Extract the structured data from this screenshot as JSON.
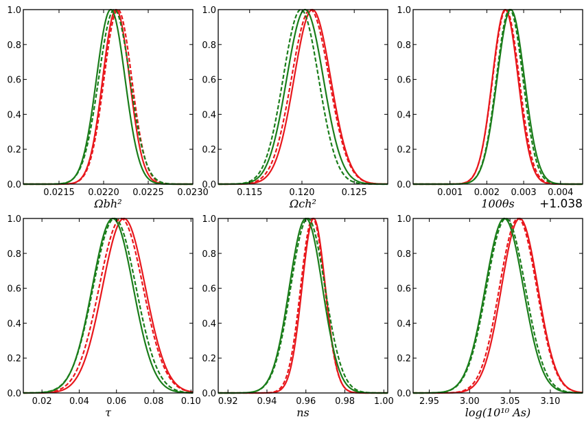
{
  "colors": {
    "red": "#e8161b",
    "green": "#1a7d1a"
  },
  "chart_data": [
    {
      "type": "line",
      "xlabel": "Ωbh²",
      "xlim": [
        0.0211,
        0.023
      ],
      "ylim": [
        0,
        1.0
      ],
      "xticks": [
        "0.0215",
        "0.0220",
        "0.0225",
        "0.0230"
      ],
      "xtick_values": [
        0.0215,
        0.022,
        0.0225,
        0.023
      ],
      "yticks": [
        "0.0",
        "0.2",
        "0.4",
        "0.6",
        "0.8",
        "1.0"
      ],
      "offset": "",
      "series": [
        {
          "color": "red",
          "style": "solid",
          "center": 0.02214,
          "sigma": 0.00015
        },
        {
          "color": "red",
          "style": "dashed",
          "center": 0.02216,
          "sigma": 0.000155
        },
        {
          "color": "green",
          "style": "solid",
          "center": 0.02208,
          "sigma": 0.00016
        },
        {
          "color": "green",
          "style": "dashed",
          "center": 0.02212,
          "sigma": 0.000175
        }
      ]
    },
    {
      "type": "line",
      "xlabel": "Ωch²",
      "xlim": [
        0.112,
        0.1282
      ],
      "ylim": [
        0,
        1.0
      ],
      "xticks": [
        "0.115",
        "0.120",
        "0.125"
      ],
      "xtick_values": [
        0.115,
        0.12,
        0.125
      ],
      "yticks": [
        "0.0",
        "0.2",
        "0.4",
        "0.6",
        "0.8",
        "1.0"
      ],
      "offset": "",
      "series": [
        {
          "color": "red",
          "style": "solid",
          "center": 0.121,
          "sigma": 0.00175
        },
        {
          "color": "red",
          "style": "dashed",
          "center": 0.1208,
          "sigma": 0.0018
        },
        {
          "color": "green",
          "style": "solid",
          "center": 0.1203,
          "sigma": 0.00175
        },
        {
          "color": "green",
          "style": "dashed",
          "center": 0.1199,
          "sigma": 0.0017
        }
      ]
    },
    {
      "type": "line",
      "xlabel": "100θs",
      "xlim": [
        0.0,
        0.0046
      ],
      "ylim": [
        0,
        1.0
      ],
      "xticks": [
        "0.001",
        "0.002",
        "0.003",
        "0.004"
      ],
      "xtick_values": [
        0.001,
        0.002,
        0.003,
        0.004
      ],
      "yticks": [
        "0.0",
        "0.2",
        "0.4",
        "0.6",
        "0.8",
        "1.0"
      ],
      "offset": "+1.038",
      "series": [
        {
          "color": "red",
          "style": "solid",
          "center": 0.0025,
          "sigma": 0.00035
        },
        {
          "color": "red",
          "style": "dashed",
          "center": 0.00252,
          "sigma": 0.00036
        },
        {
          "color": "green",
          "style": "solid",
          "center": 0.00265,
          "sigma": 0.00037
        },
        {
          "color": "green",
          "style": "dashed",
          "center": 0.00262,
          "sigma": 0.00036
        }
      ]
    },
    {
      "type": "line",
      "xlabel": "τ",
      "xlim": [
        0.01,
        0.101
      ],
      "ylim": [
        0,
        1.0
      ],
      "xticks": [
        "0.02",
        "0.04",
        "0.06",
        "0.08",
        "0.10"
      ],
      "xtick_values": [
        0.02,
        0.04,
        0.06,
        0.08,
        0.1
      ],
      "yticks": [
        "0.0",
        "0.2",
        "0.4",
        "0.6",
        "0.8",
        "1.0"
      ],
      "offset": "",
      "series": [
        {
          "color": "red",
          "style": "solid",
          "center": 0.064,
          "sigma": 0.0115
        },
        {
          "color": "red",
          "style": "dashed",
          "center": 0.0625,
          "sigma": 0.0118
        },
        {
          "color": "green",
          "style": "solid",
          "center": 0.058,
          "sigma": 0.011
        },
        {
          "color": "green",
          "style": "dashed",
          "center": 0.059,
          "sigma": 0.0115
        }
      ]
    },
    {
      "type": "line",
      "xlabel": "ns",
      "xlim": [
        0.915,
        1.002
      ],
      "ylim": [
        0,
        1.0
      ],
      "xticks": [
        "0.92",
        "0.94",
        "0.96",
        "0.98",
        "1.00"
      ],
      "xtick_values": [
        0.92,
        0.94,
        0.96,
        0.98,
        1.0
      ],
      "yticks": [
        "0.0",
        "0.2",
        "0.4",
        "0.6",
        "0.8",
        "1.0"
      ],
      "offset": "",
      "series": [
        {
          "color": "red",
          "style": "solid",
          "center": 0.964,
          "sigma": 0.006
        },
        {
          "color": "red",
          "style": "dashed",
          "center": 0.9635,
          "sigma": 0.0062
        },
        {
          "color": "green",
          "style": "solid",
          "center": 0.96,
          "sigma": 0.0085
        },
        {
          "color": "green",
          "style": "dashed",
          "center": 0.961,
          "sigma": 0.0088
        }
      ]
    },
    {
      "type": "line",
      "xlabel": "log(10¹⁰ As)",
      "xlim": [
        2.93,
        3.14
      ],
      "ylim": [
        0,
        1.0
      ],
      "xticks": [
        "2.95",
        "3.00",
        "3.05",
        "3.10"
      ],
      "xtick_values": [
        2.95,
        3.0,
        3.05,
        3.1
      ],
      "yticks": [
        "0.0",
        "0.2",
        "0.4",
        "0.6",
        "0.8",
        "1.0"
      ],
      "offset": "",
      "series": [
        {
          "color": "red",
          "style": "solid",
          "center": 3.062,
          "sigma": 0.0225
        },
        {
          "color": "red",
          "style": "dashed",
          "center": 3.06,
          "sigma": 0.023
        },
        {
          "color": "green",
          "style": "solid",
          "center": 3.043,
          "sigma": 0.0235
        },
        {
          "color": "green",
          "style": "dashed",
          "center": 3.045,
          "sigma": 0.024
        }
      ]
    }
  ]
}
